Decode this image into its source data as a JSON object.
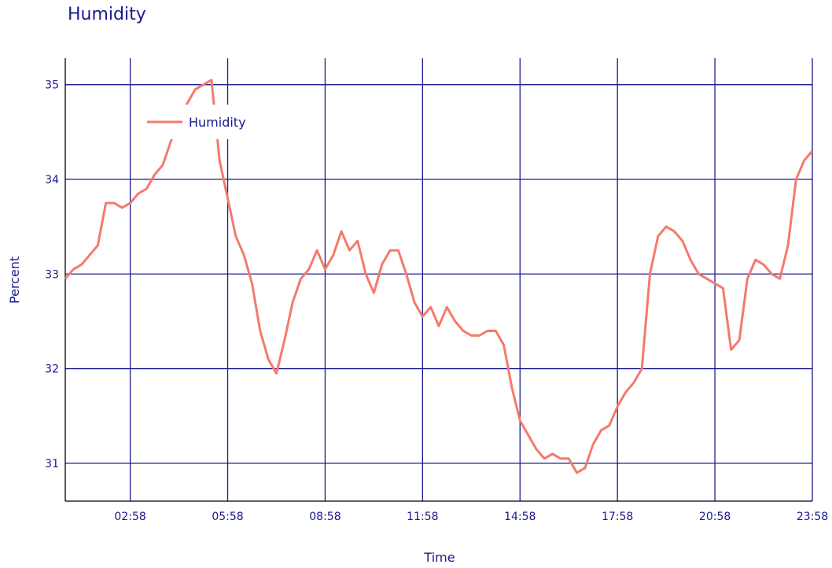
{
  "chart_data": {
    "type": "line",
    "title": "Humidity",
    "xlabel": "Time",
    "ylabel": "Percent",
    "x_ticks": [
      "02:58",
      "05:58",
      "08:58",
      "11:58",
      "14:58",
      "17:58",
      "20:58",
      "23:58"
    ],
    "x_range": [
      "00:58",
      "23:58"
    ],
    "y_ticks": [
      31,
      32,
      33,
      34,
      35
    ],
    "ylim": [
      30.6,
      35.28
    ],
    "grid": true,
    "legend_position": "top-left",
    "colors": {
      "line": "#f47a6c",
      "grid": "#1a1a8c",
      "text": "#1a1a8c"
    },
    "series": [
      {
        "name": "Humidity",
        "x": [
          "00:58",
          "01:13",
          "01:28",
          "01:43",
          "01:58",
          "02:13",
          "02:28",
          "02:43",
          "02:58",
          "03:13",
          "03:28",
          "03:43",
          "03:58",
          "04:13",
          "04:28",
          "04:43",
          "04:58",
          "05:13",
          "05:28",
          "05:43",
          "05:58",
          "06:13",
          "06:28",
          "06:43",
          "06:58",
          "07:13",
          "07:28",
          "07:43",
          "07:58",
          "08:13",
          "08:28",
          "08:43",
          "08:58",
          "09:13",
          "09:28",
          "09:43",
          "09:58",
          "10:13",
          "10:28",
          "10:43",
          "10:58",
          "11:13",
          "11:28",
          "11:43",
          "11:58",
          "12:13",
          "12:28",
          "12:43",
          "12:58",
          "13:13",
          "13:28",
          "13:43",
          "13:58",
          "14:13",
          "14:28",
          "14:43",
          "14:58",
          "15:13",
          "15:28",
          "15:43",
          "15:58",
          "16:13",
          "16:28",
          "16:43",
          "16:58",
          "17:13",
          "17:28",
          "17:43",
          "17:58",
          "18:13",
          "18:28",
          "18:43",
          "18:58",
          "19:13",
          "19:28",
          "19:43",
          "19:58",
          "20:13",
          "20:28",
          "20:43",
          "20:58",
          "21:13",
          "21:28",
          "21:43",
          "21:58",
          "22:13",
          "22:28",
          "22:43",
          "22:58",
          "23:13",
          "23:28",
          "23:43",
          "23:58"
        ],
        "y": [
          32.95,
          33.05,
          33.1,
          33.2,
          33.3,
          33.75,
          33.75,
          33.7,
          33.75,
          33.85,
          33.9,
          34.05,
          34.15,
          34.4,
          34.6,
          34.8,
          34.95,
          35.0,
          35.05,
          34.2,
          33.8,
          33.4,
          33.2,
          32.9,
          32.4,
          32.1,
          31.95,
          32.3,
          32.7,
          32.95,
          33.05,
          33.25,
          33.05,
          33.2,
          33.45,
          33.25,
          33.35,
          33.0,
          32.8,
          33.1,
          33.25,
          33.25,
          33.0,
          32.7,
          32.55,
          32.65,
          32.45,
          32.65,
          32.5,
          32.4,
          32.35,
          32.35,
          32.4,
          32.4,
          32.25,
          31.8,
          31.45,
          31.3,
          31.15,
          31.05,
          31.1,
          31.05,
          31.05,
          30.9,
          30.95,
          31.2,
          31.35,
          31.4,
          31.6,
          31.75,
          31.85,
          32.0,
          33.0,
          33.4,
          33.5,
          33.45,
          33.35,
          33.15,
          33.0,
          32.95,
          32.9,
          32.85,
          32.2,
          32.3,
          32.95,
          33.15,
          33.1,
          33.0,
          32.95,
          33.3,
          34.0,
          34.2,
          34.3
        ]
      }
    ]
  }
}
